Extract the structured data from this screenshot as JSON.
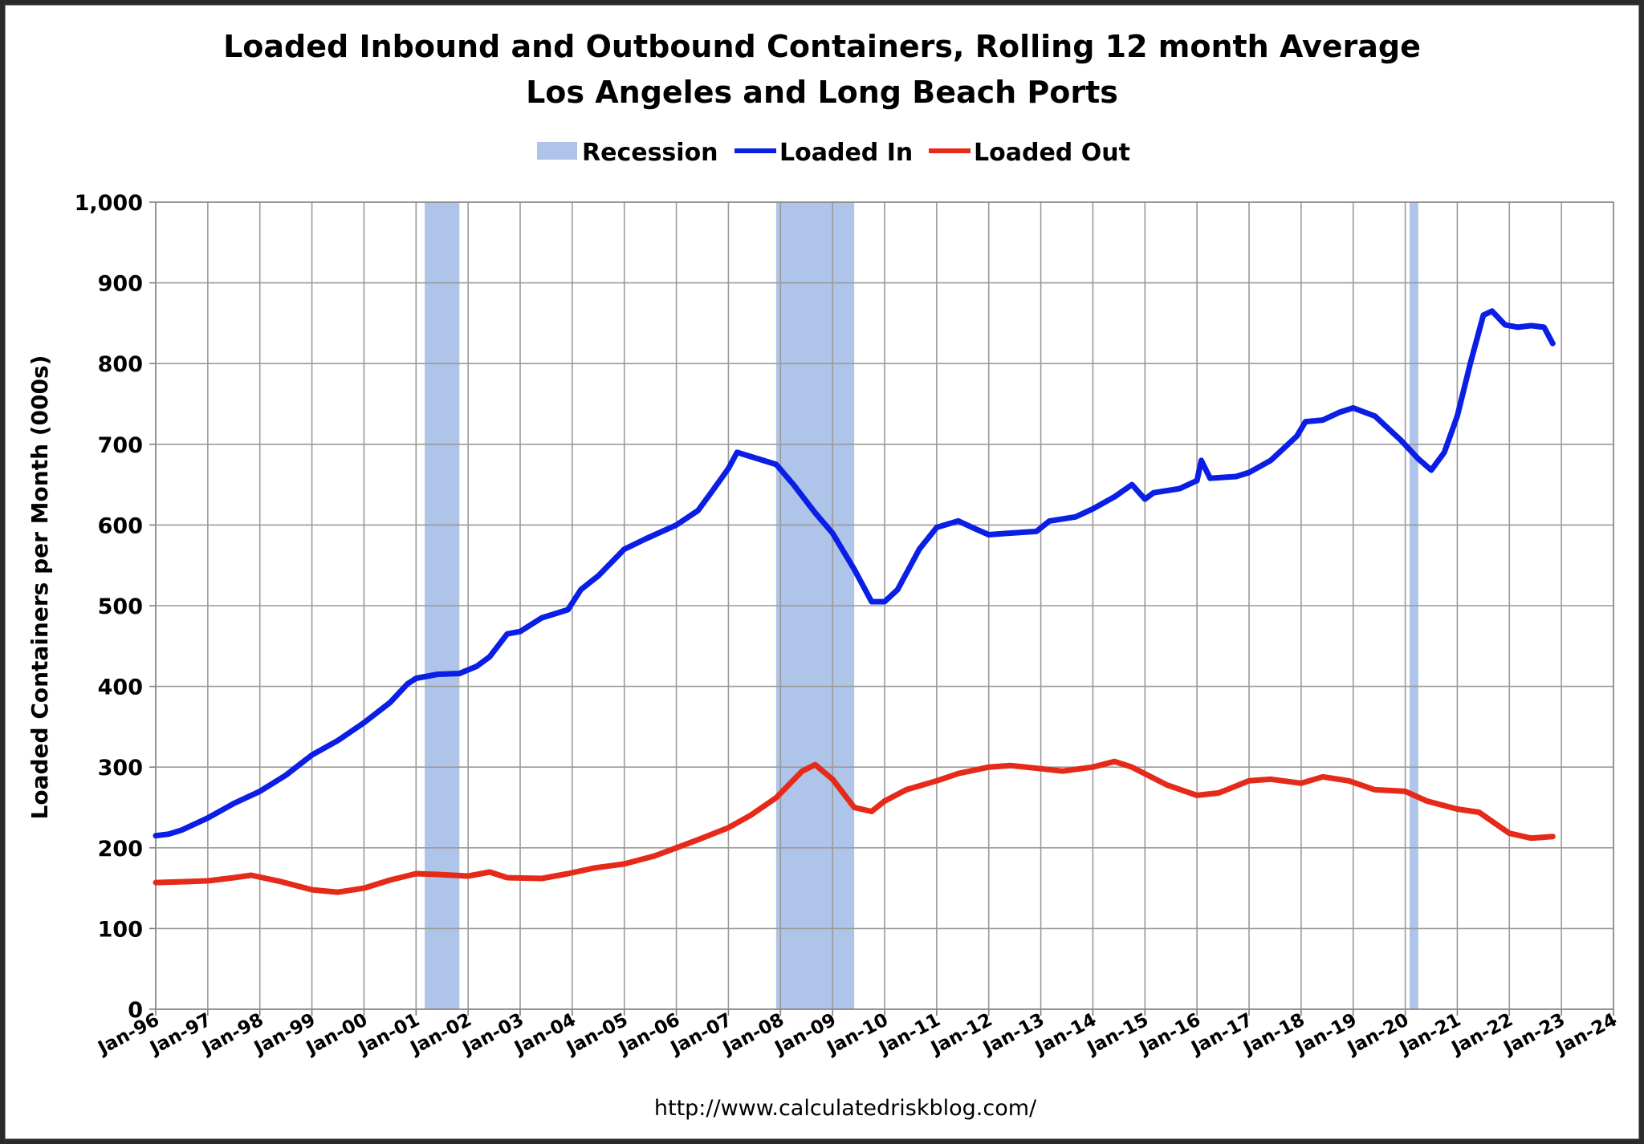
{
  "chart_data": {
    "type": "line",
    "title": "Loaded Inbound and Outbound Containers, Rolling 12 month Average",
    "subtitle": "Los Angeles and Long Beach Ports",
    "ylabel": "Loaded Containers per Month (000s)",
    "xlabel": "",
    "source": "http://www.calculatedriskblog.com/",
    "ylim": [
      0,
      1000
    ],
    "yticks": [
      "0",
      "100",
      "200",
      "300",
      "400",
      "500",
      "600",
      "700",
      "800",
      "900",
      "1,000"
    ],
    "xlim": [
      "1996-01",
      "2024-01"
    ],
    "xticks": [
      "Jan-96",
      "Jan-97",
      "Jan-98",
      "Jan-99",
      "Jan-00",
      "Jan-01",
      "Jan-02",
      "Jan-03",
      "Jan-04",
      "Jan-05",
      "Jan-06",
      "Jan-07",
      "Jan-08",
      "Jan-09",
      "Jan-10",
      "Jan-11",
      "Jan-12",
      "Jan-13",
      "Jan-14",
      "Jan-15",
      "Jan-16",
      "Jan-17",
      "Jan-18",
      "Jan-19",
      "Jan-20",
      "Jan-21",
      "Jan-22",
      "Jan-23",
      "Jan-24"
    ],
    "grid": true,
    "legend_position": "top-center",
    "legend": [
      "Recession",
      "Loaded In",
      "Loaded Out"
    ],
    "recessions": [
      {
        "start": "2001-03",
        "end": "2001-11"
      },
      {
        "start": "2007-12",
        "end": "2009-06"
      },
      {
        "start": "2020-02",
        "end": "2020-04"
      }
    ],
    "series": [
      {
        "name": "Loaded In",
        "color": "#0a1ee6",
        "points": [
          [
            "1996-01",
            215
          ],
          [
            "1996-04",
            217
          ],
          [
            "1996-07",
            222
          ],
          [
            "1997-01",
            237
          ],
          [
            "1997-07",
            255
          ],
          [
            "1998-01",
            270
          ],
          [
            "1998-07",
            290
          ],
          [
            "1999-01",
            315
          ],
          [
            "1999-07",
            333
          ],
          [
            "2000-01",
            355
          ],
          [
            "2000-07",
            380
          ],
          [
            "2000-11",
            403
          ],
          [
            "2001-01",
            410
          ],
          [
            "2001-06",
            415
          ],
          [
            "2001-11",
            416
          ],
          [
            "2002-03",
            425
          ],
          [
            "2002-06",
            437
          ],
          [
            "2002-10",
            465
          ],
          [
            "2003-01",
            468
          ],
          [
            "2003-06",
            485
          ],
          [
            "2003-12",
            495
          ],
          [
            "2004-03",
            520
          ],
          [
            "2004-07",
            537
          ],
          [
            "2005-01",
            570
          ],
          [
            "2005-06",
            583
          ],
          [
            "2006-01",
            600
          ],
          [
            "2006-06",
            618
          ],
          [
            "2006-09",
            640
          ],
          [
            "2007-01",
            670
          ],
          [
            "2007-03",
            690
          ],
          [
            "2007-06",
            685
          ],
          [
            "2007-12",
            675
          ],
          [
            "2008-04",
            650
          ],
          [
            "2008-09",
            615
          ],
          [
            "2009-01",
            590
          ],
          [
            "2009-06",
            545
          ],
          [
            "2009-10",
            505
          ],
          [
            "2010-01",
            505
          ],
          [
            "2010-04",
            520
          ],
          [
            "2010-09",
            570
          ],
          [
            "2011-01",
            597
          ],
          [
            "2011-06",
            605
          ],
          [
            "2011-10",
            595
          ],
          [
            "2012-01",
            588
          ],
          [
            "2012-06",
            590
          ],
          [
            "2012-12",
            592
          ],
          [
            "2013-03",
            605
          ],
          [
            "2013-09",
            610
          ],
          [
            "2014-01",
            620
          ],
          [
            "2014-06",
            635
          ],
          [
            "2014-10",
            650
          ],
          [
            "2015-01",
            632
          ],
          [
            "2015-03",
            640
          ],
          [
            "2015-09",
            645
          ],
          [
            "2016-01",
            655
          ],
          [
            "2016-02",
            680
          ],
          [
            "2016-04",
            658
          ],
          [
            "2016-10",
            660
          ],
          [
            "2017-01",
            665
          ],
          [
            "2017-06",
            680
          ],
          [
            "2017-12",
            710
          ],
          [
            "2018-02",
            728
          ],
          [
            "2018-06",
            730
          ],
          [
            "2018-10",
            740
          ],
          [
            "2019-01",
            745
          ],
          [
            "2019-06",
            735
          ],
          [
            "2019-12",
            705
          ],
          [
            "2020-04",
            682
          ],
          [
            "2020-07",
            668
          ],
          [
            "2020-10",
            690
          ],
          [
            "2021-01",
            735
          ],
          [
            "2021-04",
            800
          ],
          [
            "2021-07",
            860
          ],
          [
            "2021-09",
            865
          ],
          [
            "2021-12",
            848
          ],
          [
            "2022-03",
            845
          ],
          [
            "2022-06",
            847
          ],
          [
            "2022-09",
            845
          ],
          [
            "2022-11",
            825
          ]
        ]
      },
      {
        "name": "Loaded Out",
        "color": "#e62a1a",
        "points": [
          [
            "1996-01",
            157
          ],
          [
            "1996-07",
            158
          ],
          [
            "1997-01",
            159
          ],
          [
            "1997-07",
            163
          ],
          [
            "1997-11",
            166
          ],
          [
            "1998-06",
            158
          ],
          [
            "1999-01",
            148
          ],
          [
            "1999-07",
            145
          ],
          [
            "2000-01",
            150
          ],
          [
            "2000-07",
            160
          ],
          [
            "2001-01",
            168
          ],
          [
            "2001-06",
            167
          ],
          [
            "2002-01",
            165
          ],
          [
            "2002-06",
            170
          ],
          [
            "2002-10",
            163
          ],
          [
            "2003-06",
            162
          ],
          [
            "2003-12",
            168
          ],
          [
            "2004-06",
            175
          ],
          [
            "2005-01",
            180
          ],
          [
            "2005-08",
            190
          ],
          [
            "2006-01",
            200
          ],
          [
            "2006-06",
            210
          ],
          [
            "2007-01",
            225
          ],
          [
            "2007-06",
            240
          ],
          [
            "2007-12",
            262
          ],
          [
            "2008-06",
            295
          ],
          [
            "2008-09",
            303
          ],
          [
            "2009-01",
            285
          ],
          [
            "2009-06",
            250
          ],
          [
            "2009-10",
            245
          ],
          [
            "2010-01",
            258
          ],
          [
            "2010-06",
            272
          ],
          [
            "2011-01",
            283
          ],
          [
            "2011-06",
            292
          ],
          [
            "2012-01",
            300
          ],
          [
            "2012-06",
            302
          ],
          [
            "2013-01",
            298
          ],
          [
            "2013-06",
            295
          ],
          [
            "2014-01",
            300
          ],
          [
            "2014-06",
            307
          ],
          [
            "2014-10",
            300
          ],
          [
            "2015-06",
            278
          ],
          [
            "2016-01",
            265
          ],
          [
            "2016-06",
            268
          ],
          [
            "2017-01",
            283
          ],
          [
            "2017-06",
            285
          ],
          [
            "2018-01",
            280
          ],
          [
            "2018-06",
            288
          ],
          [
            "2018-12",
            283
          ],
          [
            "2019-06",
            272
          ],
          [
            "2020-01",
            270
          ],
          [
            "2020-06",
            258
          ],
          [
            "2021-01",
            248
          ],
          [
            "2021-06",
            244
          ],
          [
            "2022-01",
            218
          ],
          [
            "2022-06",
            212
          ],
          [
            "2022-11",
            214
          ]
        ]
      }
    ]
  }
}
